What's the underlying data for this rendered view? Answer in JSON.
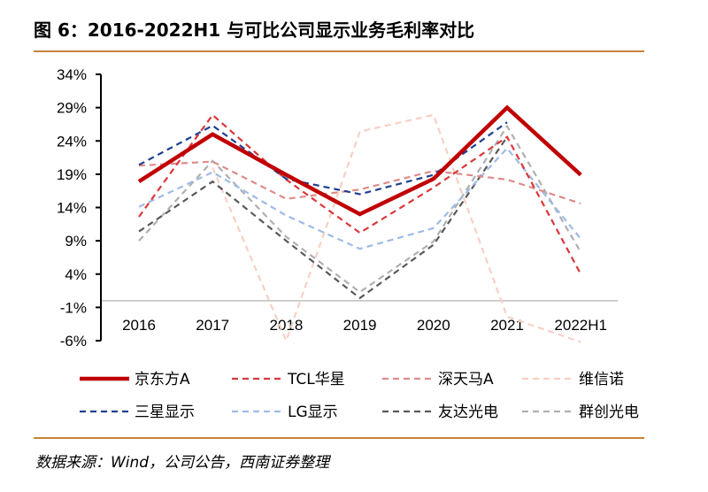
{
  "title": "图 6：2016-2022H1 与可比公司显示业务毛利率对比",
  "source": "数据来源：Wind，公司公告，西南证券整理",
  "chart_data": {
    "type": "line",
    "title": "2016-2022H1 与可比公司显示业务毛利率对比",
    "categories": [
      "2016",
      "2017",
      "2018",
      "2019",
      "2020",
      "2021",
      "2022H1"
    ],
    "yticks": [
      "34%",
      "29%",
      "24%",
      "19%",
      "14%",
      "9%",
      "4%",
      "-1%",
      "-6%"
    ],
    "ylim": [
      -6,
      34
    ],
    "legend_position": "bottom",
    "series": [
      {
        "name": "京东方A",
        "color": "#c00000",
        "style": "solid",
        "values": [
          17.9,
          25.0,
          18.9,
          13.0,
          18.3,
          29.0,
          18.9
        ]
      },
      {
        "name": "TCL华星",
        "color": "#d9383a",
        "style": "dash",
        "values": [
          12.6,
          27.9,
          18.2,
          10.2,
          17.0,
          24.6,
          4.0
        ]
      },
      {
        "name": "深天马A",
        "color": "#e08a8a",
        "style": "dash",
        "values": [
          20.3,
          20.9,
          15.3,
          16.7,
          19.5,
          18.2,
          14.6
        ]
      },
      {
        "name": "维信诺",
        "color": "#f7d0c4",
        "style": "dash",
        "values": [
          null,
          20.0,
          -6.0,
          25.4,
          27.9,
          -2.4,
          -6.2
        ]
      },
      {
        "name": "三星显示",
        "color": "#1f3f8f",
        "style": "dash",
        "values": [
          20.4,
          26.3,
          18.3,
          16.0,
          18.9,
          26.8,
          null
        ]
      },
      {
        "name": "LG显示",
        "color": "#9fbbe6",
        "style": "dash",
        "values": [
          14.1,
          19.3,
          12.8,
          7.8,
          10.9,
          22.9,
          9.3
        ]
      },
      {
        "name": "友达光电",
        "color": "#595959",
        "style": "dash",
        "values": [
          10.4,
          17.9,
          9.0,
          0.4,
          8.4,
          24.6,
          null
        ]
      },
      {
        "name": "群创光电",
        "color": "#b0b0b0",
        "style": "dash",
        "values": [
          9.0,
          21.0,
          9.6,
          1.3,
          8.9,
          26.2,
          7.3
        ]
      }
    ]
  }
}
